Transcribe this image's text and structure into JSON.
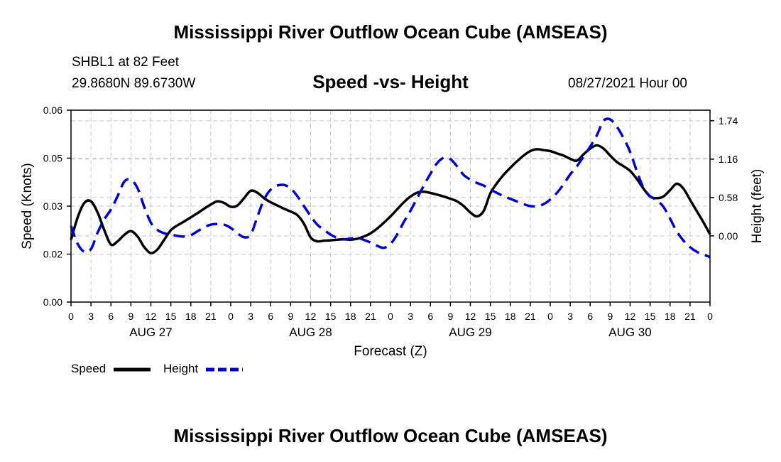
{
  "chart_data": {
    "type": "line",
    "title": "Mississippi River Outflow Ocean Cube (AMSEAS)",
    "footer_title": "Mississippi River Outflow Ocean Cube (AMSEAS)",
    "subtitle": "Speed -vs- Height",
    "station": "SHBL1 at 82 Feet",
    "location": "29.8680N  89.6730W",
    "datetime": "08/27/2021 Hour 00",
    "xlabel": "Forecast (Z)",
    "ylabel_left": "Speed (Knots)",
    "ylabel_right": "Height (feet)",
    "x_range": [
      0,
      96
    ],
    "x_ticks": [
      0,
      3,
      6,
      9,
      12,
      15,
      18,
      21,
      24,
      27,
      30,
      33,
      36,
      39,
      42,
      45,
      48,
      51,
      54,
      57,
      60,
      63,
      66,
      69,
      72,
      75,
      78,
      81,
      84,
      87,
      90,
      93,
      96
    ],
    "x_tick_labels": [
      "0",
      "3",
      "6",
      "9",
      "12",
      "15",
      "18",
      "21",
      "0",
      "3",
      "6",
      "9",
      "12",
      "15",
      "18",
      "21",
      "0",
      "3",
      "6",
      "9",
      "12",
      "15",
      "18",
      "21",
      "0",
      "3",
      "6",
      "9",
      "12",
      "15",
      "18",
      "21",
      "0"
    ],
    "day_labels": [
      {
        "x": 12,
        "label": "AUG 27"
      },
      {
        "x": 36,
        "label": "AUG 28"
      },
      {
        "x": 60,
        "label": "AUG 29"
      },
      {
        "x": 84,
        "label": "AUG 30"
      }
    ],
    "y_left": {
      "range": [
        0,
        0.06
      ],
      "ticks": [
        0,
        0.015,
        0.03,
        0.045,
        0.06
      ],
      "tick_labels": [
        "0.00",
        "0.02",
        "0.03",
        "0.05",
        "0.06"
      ]
    },
    "y_right": {
      "range": [
        -1.0,
        1.9
      ],
      "ticks": [
        0.0,
        0.58,
        1.16,
        1.74
      ],
      "tick_labels": [
        "0.00",
        "0.58",
        "1.16",
        "1.74"
      ]
    },
    "series": [
      {
        "name": "Speed",
        "axis": "left",
        "color": "#000000",
        "style": "solid",
        "x": [
          0,
          1,
          2,
          3,
          4,
          5,
          6,
          7,
          8,
          9,
          10,
          11,
          12,
          13,
          14,
          15,
          16,
          17,
          18,
          19,
          20,
          21,
          22,
          23,
          24,
          25,
          26,
          27,
          28,
          29,
          30,
          31,
          32,
          33,
          34,
          35,
          36,
          37,
          38,
          39,
          40,
          41,
          42,
          43,
          44,
          45,
          46,
          47,
          48,
          49,
          50,
          51,
          52,
          53,
          54,
          55,
          56,
          57,
          58,
          59,
          60,
          61,
          62,
          63,
          64,
          65,
          66,
          67,
          68,
          69,
          70,
          71,
          72,
          73,
          74,
          75,
          76,
          77,
          78,
          79,
          80,
          81,
          82,
          83,
          84,
          85,
          86,
          87,
          88,
          89,
          90,
          91,
          92,
          93,
          94,
          95,
          96
        ],
        "values": [
          0.0195,
          0.0265,
          0.031,
          0.0315,
          0.028,
          0.0225,
          0.018,
          0.019,
          0.021,
          0.0222,
          0.0205,
          0.0172,
          0.0153,
          0.0165,
          0.0195,
          0.0225,
          0.024,
          0.0252,
          0.0265,
          0.0278,
          0.0292,
          0.0305,
          0.0315,
          0.031,
          0.0298,
          0.0302,
          0.0325,
          0.0348,
          0.0342,
          0.0325,
          0.0312,
          0.0302,
          0.0292,
          0.0283,
          0.0272,
          0.0245,
          0.0202,
          0.019,
          0.0192,
          0.0193,
          0.0195,
          0.0196,
          0.0195,
          0.0198,
          0.0205,
          0.0215,
          0.023,
          0.0248,
          0.0268,
          0.029,
          0.0312,
          0.033,
          0.0342,
          0.0345,
          0.0341,
          0.0336,
          0.033,
          0.0323,
          0.0315,
          0.03,
          0.028,
          0.0268,
          0.0285,
          0.034,
          0.0372,
          0.0398,
          0.042,
          0.044,
          0.0458,
          0.0472,
          0.0478,
          0.0475,
          0.0472,
          0.0465,
          0.0458,
          0.0448,
          0.0442,
          0.0462,
          0.048,
          0.049,
          0.048,
          0.0458,
          0.0438,
          0.0425,
          0.041,
          0.0385,
          0.0355,
          0.033,
          0.0325,
          0.033,
          0.035,
          0.037,
          0.0355,
          0.032,
          0.0285,
          0.025,
          0.0212
        ]
      },
      {
        "name": "Height",
        "axis": "right",
        "color": "#0000cc",
        "style": "dashed",
        "x": [
          0,
          1,
          2,
          3,
          4,
          5,
          6,
          7,
          8,
          9,
          10,
          11,
          12,
          13,
          14,
          15,
          16,
          17,
          18,
          19,
          20,
          21,
          22,
          23,
          24,
          25,
          26,
          27,
          28,
          29,
          30,
          31,
          32,
          33,
          34,
          35,
          36,
          37,
          38,
          39,
          40,
          41,
          42,
          43,
          44,
          45,
          46,
          47,
          48,
          49,
          50,
          51,
          52,
          53,
          54,
          55,
          56,
          57,
          58,
          59,
          60,
          61,
          62,
          63,
          64,
          65,
          66,
          67,
          68,
          69,
          70,
          71,
          72,
          73,
          74,
          75,
          76,
          77,
          78,
          79,
          80,
          81,
          82,
          83,
          84,
          85,
          86,
          87,
          88,
          89,
          90,
          91,
          92,
          93,
          94,
          95,
          96
        ],
        "values": [
          0.15,
          -0.12,
          -0.24,
          -0.2,
          0.05,
          0.25,
          0.4,
          0.6,
          0.82,
          0.85,
          0.72,
          0.44,
          0.2,
          0.09,
          0.04,
          0.02,
          0.0,
          -0.01,
          0.01,
          0.07,
          0.13,
          0.17,
          0.18,
          0.17,
          0.12,
          0.04,
          -0.02,
          0.02,
          0.29,
          0.55,
          0.7,
          0.76,
          0.77,
          0.72,
          0.6,
          0.45,
          0.3,
          0.17,
          0.09,
          0.02,
          -0.03,
          -0.05,
          -0.04,
          -0.03,
          -0.06,
          -0.1,
          -0.15,
          -0.18,
          -0.12,
          0.02,
          0.21,
          0.38,
          0.57,
          0.76,
          0.94,
          1.1,
          1.18,
          1.16,
          1.05,
          0.92,
          0.85,
          0.8,
          0.76,
          0.7,
          0.65,
          0.6,
          0.56,
          0.52,
          0.48,
          0.45,
          0.45,
          0.48,
          0.55,
          0.65,
          0.78,
          0.93,
          1.05,
          1.2,
          1.35,
          1.52,
          1.74,
          1.76,
          1.65,
          1.48,
          1.27,
          0.98,
          0.73,
          0.6,
          0.54,
          0.44,
          0.26,
          0.07,
          -0.07,
          -0.17,
          -0.24,
          -0.28,
          -0.32
        ]
      }
    ],
    "legend": [
      {
        "label": "Speed",
        "color": "#000000",
        "style": "solid"
      },
      {
        "label": "Height",
        "color": "#0000cc",
        "style": "dashed"
      }
    ],
    "legend_position": "bottom-left",
    "grid": true
  }
}
